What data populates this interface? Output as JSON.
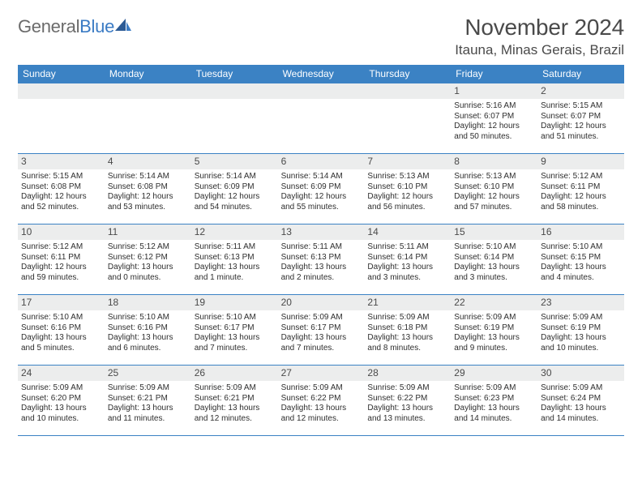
{
  "brand": {
    "part1": "General",
    "part2": "Blue"
  },
  "header": {
    "month_title": "November 2024",
    "location": "Itauna, Minas Gerais, Brazil"
  },
  "colors": {
    "header_bg": "#3b82c4",
    "header_text": "#ffffff",
    "daynum_bg": "#eceded",
    "border": "#3b82c4",
    "logo_gray": "#6b6b6b",
    "logo_blue": "#3b7bc4"
  },
  "weekdays": [
    "Sunday",
    "Monday",
    "Tuesday",
    "Wednesday",
    "Thursday",
    "Friday",
    "Saturday"
  ],
  "weeks": [
    [
      {
        "n": "",
        "empty": true
      },
      {
        "n": "",
        "empty": true
      },
      {
        "n": "",
        "empty": true
      },
      {
        "n": "",
        "empty": true
      },
      {
        "n": "",
        "empty": true
      },
      {
        "n": "1",
        "sunrise": "5:16 AM",
        "sunset": "6:07 PM",
        "daylight": "12 hours and 50 minutes."
      },
      {
        "n": "2",
        "sunrise": "5:15 AM",
        "sunset": "6:07 PM",
        "daylight": "12 hours and 51 minutes."
      }
    ],
    [
      {
        "n": "3",
        "sunrise": "5:15 AM",
        "sunset": "6:08 PM",
        "daylight": "12 hours and 52 minutes."
      },
      {
        "n": "4",
        "sunrise": "5:14 AM",
        "sunset": "6:08 PM",
        "daylight": "12 hours and 53 minutes."
      },
      {
        "n": "5",
        "sunrise": "5:14 AM",
        "sunset": "6:09 PM",
        "daylight": "12 hours and 54 minutes."
      },
      {
        "n": "6",
        "sunrise": "5:14 AM",
        "sunset": "6:09 PM",
        "daylight": "12 hours and 55 minutes."
      },
      {
        "n": "7",
        "sunrise": "5:13 AM",
        "sunset": "6:10 PM",
        "daylight": "12 hours and 56 minutes."
      },
      {
        "n": "8",
        "sunrise": "5:13 AM",
        "sunset": "6:10 PM",
        "daylight": "12 hours and 57 minutes."
      },
      {
        "n": "9",
        "sunrise": "5:12 AM",
        "sunset": "6:11 PM",
        "daylight": "12 hours and 58 minutes."
      }
    ],
    [
      {
        "n": "10",
        "sunrise": "5:12 AM",
        "sunset": "6:11 PM",
        "daylight": "12 hours and 59 minutes."
      },
      {
        "n": "11",
        "sunrise": "5:12 AM",
        "sunset": "6:12 PM",
        "daylight": "13 hours and 0 minutes."
      },
      {
        "n": "12",
        "sunrise": "5:11 AM",
        "sunset": "6:13 PM",
        "daylight": "13 hours and 1 minute."
      },
      {
        "n": "13",
        "sunrise": "5:11 AM",
        "sunset": "6:13 PM",
        "daylight": "13 hours and 2 minutes."
      },
      {
        "n": "14",
        "sunrise": "5:11 AM",
        "sunset": "6:14 PM",
        "daylight": "13 hours and 3 minutes."
      },
      {
        "n": "15",
        "sunrise": "5:10 AM",
        "sunset": "6:14 PM",
        "daylight": "13 hours and 3 minutes."
      },
      {
        "n": "16",
        "sunrise": "5:10 AM",
        "sunset": "6:15 PM",
        "daylight": "13 hours and 4 minutes."
      }
    ],
    [
      {
        "n": "17",
        "sunrise": "5:10 AM",
        "sunset": "6:16 PM",
        "daylight": "13 hours and 5 minutes."
      },
      {
        "n": "18",
        "sunrise": "5:10 AM",
        "sunset": "6:16 PM",
        "daylight": "13 hours and 6 minutes."
      },
      {
        "n": "19",
        "sunrise": "5:10 AM",
        "sunset": "6:17 PM",
        "daylight": "13 hours and 7 minutes."
      },
      {
        "n": "20",
        "sunrise": "5:09 AM",
        "sunset": "6:17 PM",
        "daylight": "13 hours and 7 minutes."
      },
      {
        "n": "21",
        "sunrise": "5:09 AM",
        "sunset": "6:18 PM",
        "daylight": "13 hours and 8 minutes."
      },
      {
        "n": "22",
        "sunrise": "5:09 AM",
        "sunset": "6:19 PM",
        "daylight": "13 hours and 9 minutes."
      },
      {
        "n": "23",
        "sunrise": "5:09 AM",
        "sunset": "6:19 PM",
        "daylight": "13 hours and 10 minutes."
      }
    ],
    [
      {
        "n": "24",
        "sunrise": "5:09 AM",
        "sunset": "6:20 PM",
        "daylight": "13 hours and 10 minutes."
      },
      {
        "n": "25",
        "sunrise": "5:09 AM",
        "sunset": "6:21 PM",
        "daylight": "13 hours and 11 minutes."
      },
      {
        "n": "26",
        "sunrise": "5:09 AM",
        "sunset": "6:21 PM",
        "daylight": "13 hours and 12 minutes."
      },
      {
        "n": "27",
        "sunrise": "5:09 AM",
        "sunset": "6:22 PM",
        "daylight": "13 hours and 12 minutes."
      },
      {
        "n": "28",
        "sunrise": "5:09 AM",
        "sunset": "6:22 PM",
        "daylight": "13 hours and 13 minutes."
      },
      {
        "n": "29",
        "sunrise": "5:09 AM",
        "sunset": "6:23 PM",
        "daylight": "13 hours and 14 minutes."
      },
      {
        "n": "30",
        "sunrise": "5:09 AM",
        "sunset": "6:24 PM",
        "daylight": "13 hours and 14 minutes."
      }
    ]
  ],
  "labels": {
    "sunrise_prefix": "Sunrise: ",
    "sunset_prefix": "Sunset: ",
    "daylight_prefix": "Daylight: "
  }
}
